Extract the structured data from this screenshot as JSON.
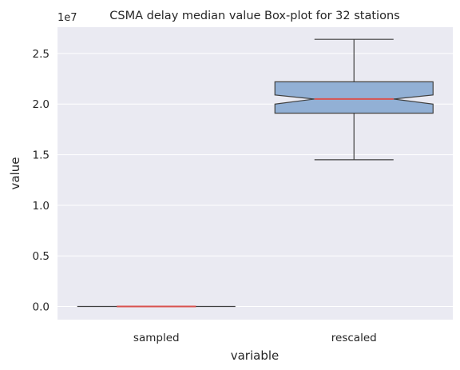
{
  "chart_data": {
    "type": "box",
    "title": "CSMA delay median value Box-plot for 32 stations",
    "xlabel": "variable",
    "ylabel": "value",
    "offset_label": "1e7",
    "categories": [
      "sampled",
      "rescaled"
    ],
    "ylim": [
      -1300000,
      27600000
    ],
    "yticks": [
      0,
      5000000,
      10000000,
      15000000,
      20000000,
      25000000
    ],
    "ytick_labels": [
      "0.0",
      "0.5",
      "1.0",
      "1.5",
      "2.0",
      "2.5"
    ],
    "notch": true,
    "grid": true,
    "boxes": [
      {
        "category": "sampled",
        "whisker_low": 0,
        "q1": 0,
        "median": 0,
        "q3": 0,
        "whisker_high": 0,
        "notch_low": 0,
        "notch_high": 0
      },
      {
        "category": "rescaled",
        "whisker_low": 14500000,
        "q1": 19100000,
        "median": 20500000,
        "q3": 22200000,
        "whisker_high": 26400000,
        "notch_low": 20000000,
        "notch_high": 20900000
      }
    ],
    "colors": {
      "box_fill": "#92b0d5",
      "median": "#d9534f",
      "edge": "#3f3f3f",
      "background": "#eaeaf2",
      "grid": "#ffffff"
    }
  }
}
